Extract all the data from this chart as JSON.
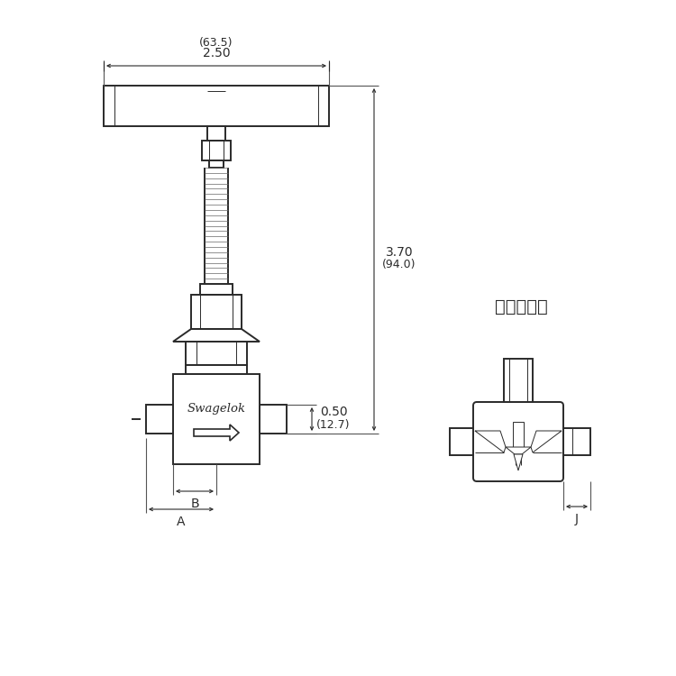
{
  "bg_color": "#ffffff",
  "line_color": "#2a2a2a",
  "dim_color": "#2a2a2a",
  "title_text": "承插焊端接",
  "dim_25": "2.50",
  "dim_635": "(63.5)",
  "dim_37": "3.70",
  "dim_940": "(94.0)",
  "dim_050": "0.50",
  "dim_127": "(12.7)",
  "label_A": "A",
  "label_B": "B",
  "label_J": "J",
  "swagelok_text": "Swagelok",
  "figsize": [
    7.5,
    7.5
  ],
  "dpi": 100,
  "lw_main": 1.4,
  "lw_thin": 0.7,
  "lw_dim": 0.8
}
